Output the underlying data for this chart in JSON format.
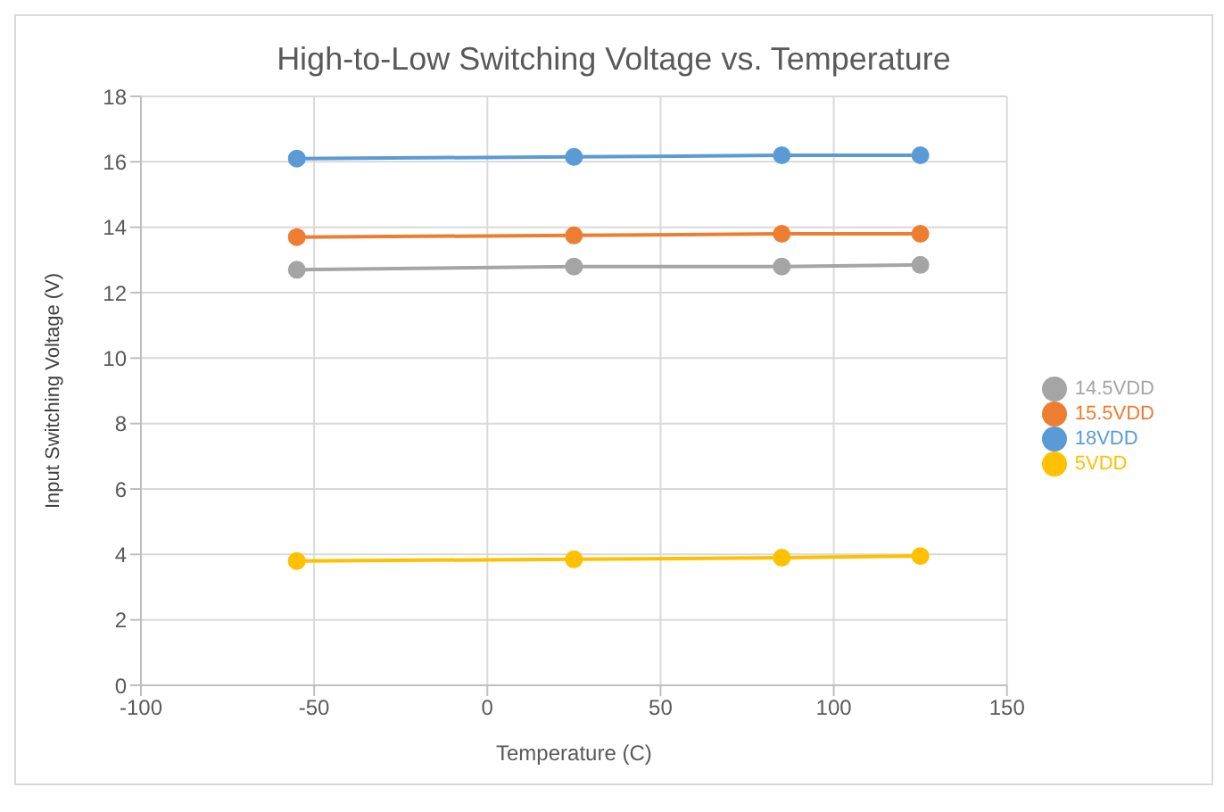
{
  "chart_data": {
    "type": "line",
    "title": "High-to-Low Switching Voltage vs. Temperature",
    "xlabel": "Temperature (C)",
    "ylabel": "Input Switching Voltage (V)",
    "x": [
      -55,
      25,
      85,
      125
    ],
    "series": [
      {
        "name": "18VDD",
        "color": "#5b9bd5",
        "values": [
          16.1,
          16.15,
          16.2,
          16.2
        ]
      },
      {
        "name": "15.5VDD",
        "color": "#ed7d31",
        "values": [
          13.7,
          13.75,
          13.8,
          13.8
        ]
      },
      {
        "name": "14.5VDD",
        "color": "#a5a5a5",
        "values": [
          12.7,
          12.8,
          12.8,
          12.85
        ]
      },
      {
        "name": "5VDD",
        "color": "#ffc000",
        "values": [
          3.8,
          3.85,
          3.9,
          3.95
        ]
      }
    ],
    "xlim": [
      -100,
      150
    ],
    "xticks": [
      -100,
      -50,
      0,
      50,
      100,
      150
    ],
    "ylim": [
      0,
      18
    ],
    "yticks": [
      0,
      2,
      4,
      6,
      8,
      10,
      12,
      14,
      16,
      18
    ],
    "grid": true,
    "legend": "right",
    "marker": "circle",
    "line_style": "solid"
  }
}
